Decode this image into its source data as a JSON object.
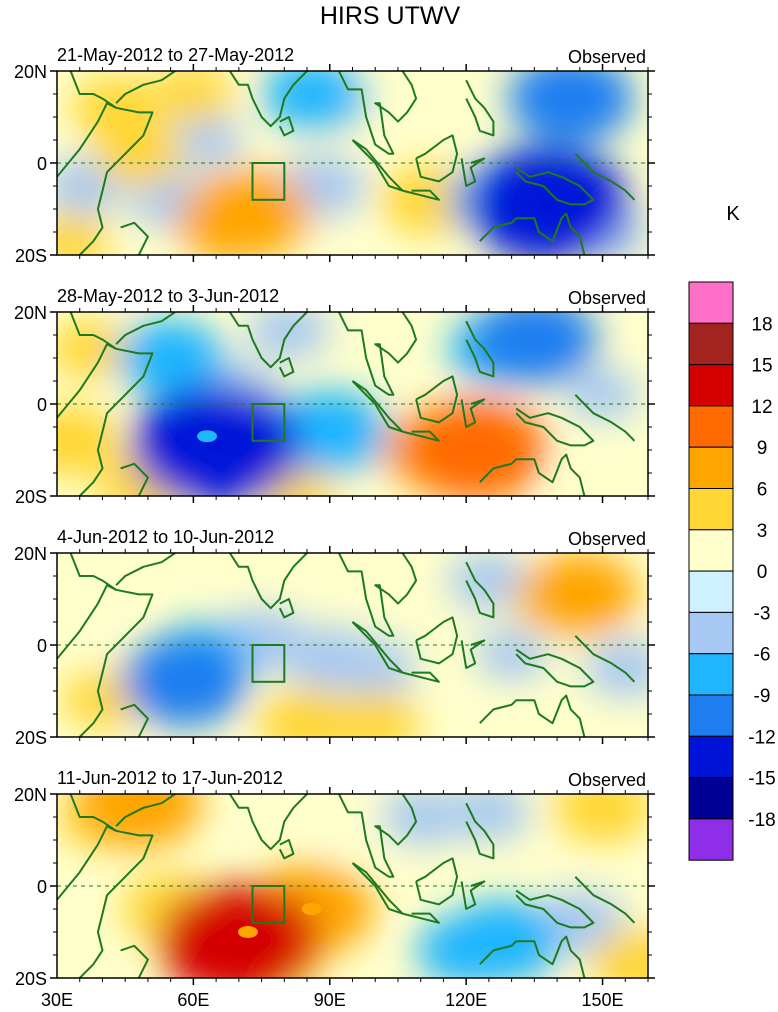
{
  "chart_data": {
    "type": "heatmap",
    "title": "HIRS UTWV",
    "xlabel": "",
    "ylabel": "",
    "x_range": [
      30,
      160
    ],
    "y_range": [
      -20,
      20
    ],
    "x_ticks": [
      {
        "value": 30,
        "label": "30E"
      },
      {
        "value": 60,
        "label": "60E"
      },
      {
        "value": 90,
        "label": "90E"
      },
      {
        "value": 120,
        "label": "120E"
      },
      {
        "value": 150,
        "label": "150E"
      }
    ],
    "y_ticks": [
      {
        "value": 20,
        "label": "20N"
      },
      {
        "value": 0,
        "label": "0"
      },
      {
        "value": -20,
        "label": "20S"
      }
    ],
    "box_region": {
      "lon": [
        73,
        80
      ],
      "lat": [
        -8,
        0
      ]
    },
    "colorbar": {
      "unit": "K",
      "levels": [
        "18",
        "15",
        "12",
        "9",
        "6",
        "3",
        "0",
        "-3",
        "-6",
        "-9",
        "-12",
        "-15",
        "-18"
      ],
      "colors": [
        "#ff6ec7",
        "#a3231f",
        "#d40000",
        "#ff6a00",
        "#ffa500",
        "#ffd633",
        "#ffffcc",
        "#cdf1ff",
        "#a6c8f2",
        "#1fb5ff",
        "#1e7ef0",
        "#0014d9",
        "#000096",
        "#8e2ee8"
      ]
    },
    "panels": [
      {
        "period": "21-May-2012 to 27-May-2012",
        "label": "Observed",
        "anomalies": [
          {
            "lon": 43,
            "lat": 12,
            "value": 5
          },
          {
            "lon": 48,
            "lat": 2,
            "value": 5
          },
          {
            "lon": 60,
            "lat": 15,
            "value": 4
          },
          {
            "lon": 72,
            "lat": -11,
            "value": 9
          },
          {
            "lon": 68,
            "lat": -13,
            "value": 7
          },
          {
            "lon": 112,
            "lat": -8,
            "value": 6
          },
          {
            "lon": 33,
            "lat": -17,
            "value": 4
          },
          {
            "lon": 63,
            "lat": 5,
            "value": -3
          },
          {
            "lon": 88,
            "lat": -5,
            "value": -5
          },
          {
            "lon": 90,
            "lat": 14,
            "value": -4
          },
          {
            "lon": 86,
            "lat": 15,
            "value": -6
          },
          {
            "lon": 138,
            "lat": -9,
            "value": -13
          },
          {
            "lon": 128,
            "lat": -8,
            "value": -7
          },
          {
            "lon": 143,
            "lat": 14,
            "value": -9
          },
          {
            "lon": 150,
            "lat": -15,
            "value": -5
          },
          {
            "lon": 36,
            "lat": -5,
            "value": -4
          },
          {
            "lon": 55,
            "lat": -8,
            "value": -4
          }
        ]
      },
      {
        "period": "28-May-2012 to 3-Jun-2012",
        "label": "Observed",
        "anomalies": [
          {
            "lon": 65,
            "lat": -9,
            "value": -14
          },
          {
            "lon": 63,
            "lat": -7,
            "value": -8
          },
          {
            "lon": 55,
            "lat": 10,
            "value": -7
          },
          {
            "lon": 69,
            "lat": 2,
            "value": -5
          },
          {
            "lon": 90,
            "lat": -6,
            "value": -8
          },
          {
            "lon": 135,
            "lat": 14,
            "value": -9
          },
          {
            "lon": 127,
            "lat": 12,
            "value": -6
          },
          {
            "lon": 81,
            "lat": 16,
            "value": -4
          },
          {
            "lon": 122,
            "lat": -10,
            "value": 11
          },
          {
            "lon": 113,
            "lat": -10,
            "value": 7
          },
          {
            "lon": 50,
            "lat": -18,
            "value": 6
          },
          {
            "lon": 33,
            "lat": -8,
            "value": 6
          },
          {
            "lon": 82,
            "lat": -19,
            "value": 4
          },
          {
            "lon": 37,
            "lat": 12,
            "value": 4
          },
          {
            "lon": 150,
            "lat": 2,
            "value": -3
          },
          {
            "lon": 147,
            "lat": -17,
            "value": 3
          }
        ]
      },
      {
        "period": "4-Jun-2012 to 10-Jun-2012",
        "label": "Observed",
        "anomalies": [
          {
            "lon": 58,
            "lat": -8,
            "value": -9
          },
          {
            "lon": 62,
            "lat": -3,
            "value": -6
          },
          {
            "lon": 75,
            "lat": 1,
            "value": -5
          },
          {
            "lon": 90,
            "lat": -3,
            "value": -5
          },
          {
            "lon": 100,
            "lat": -5,
            "value": -4
          },
          {
            "lon": 125,
            "lat": 14,
            "value": -4
          },
          {
            "lon": 145,
            "lat": 11,
            "value": 8
          },
          {
            "lon": 140,
            "lat": 10,
            "value": 5
          },
          {
            "lon": 85,
            "lat": -17,
            "value": 6
          },
          {
            "lon": 100,
            "lat": -17,
            "value": 5
          },
          {
            "lon": 40,
            "lat": -12,
            "value": 4
          },
          {
            "lon": 38,
            "lat": 13,
            "value": 3
          },
          {
            "lon": 130,
            "lat": -2,
            "value": -3
          },
          {
            "lon": 155,
            "lat": -5,
            "value": -4
          }
        ]
      },
      {
        "period": "11-Jun-2012 to 17-Jun-2012",
        "label": "Observed",
        "anomalies": [
          {
            "lon": 70,
            "lat": -12,
            "value": 13
          },
          {
            "lon": 72,
            "lat": -10,
            "value": 9
          },
          {
            "lon": 86,
            "lat": -5,
            "value": 9
          },
          {
            "lon": 55,
            "lat": -5,
            "value": 6
          },
          {
            "lon": 78,
            "lat": -16,
            "value": 6
          },
          {
            "lon": 48,
            "lat": 18,
            "value": 9
          },
          {
            "lon": 40,
            "lat": 15,
            "value": 5
          },
          {
            "lon": 150,
            "lat": 17,
            "value": 6
          },
          {
            "lon": 158,
            "lat": -17,
            "value": 6
          },
          {
            "lon": 128,
            "lat": -12,
            "value": -8
          },
          {
            "lon": 120,
            "lat": -14,
            "value": -6
          },
          {
            "lon": 125,
            "lat": 16,
            "value": -4
          },
          {
            "lon": 145,
            "lat": -8,
            "value": -5
          },
          {
            "lon": 110,
            "lat": 15,
            "value": -4
          },
          {
            "lon": 97,
            "lat": 12,
            "value": 3
          }
        ]
      }
    ]
  }
}
